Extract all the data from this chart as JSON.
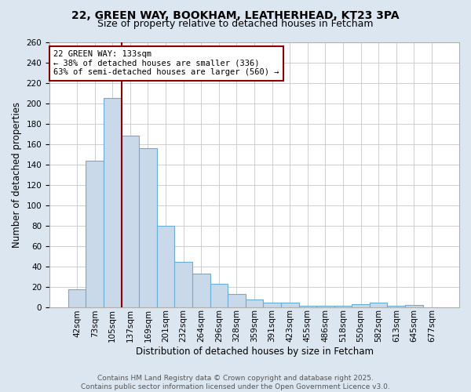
{
  "title_line1": "22, GREEN WAY, BOOKHAM, LEATHERHEAD, KT23 3PA",
  "title_line2": "Size of property relative to detached houses in Fetcham",
  "xlabel": "Distribution of detached houses by size in Fetcham",
  "ylabel": "Number of detached properties",
  "categories": [
    "42sqm",
    "73sqm",
    "105sqm",
    "137sqm",
    "169sqm",
    "201sqm",
    "232sqm",
    "264sqm",
    "296sqm",
    "328sqm",
    "359sqm",
    "391sqm",
    "423sqm",
    "455sqm",
    "486sqm",
    "518sqm",
    "550sqm",
    "582sqm",
    "613sqm",
    "645sqm",
    "677sqm"
  ],
  "values": [
    17,
    144,
    205,
    168,
    156,
    80,
    44,
    33,
    23,
    13,
    7,
    4,
    4,
    1,
    1,
    1,
    3,
    4,
    1,
    2,
    0
  ],
  "bar_color": "#c9d9ea",
  "bar_edge_color": "#6aaed6",
  "vline_color": "#8B0000",
  "vline_x_idx": 3,
  "annotation_text": "22 GREEN WAY: 133sqm\n← 38% of detached houses are smaller (336)\n63% of semi-detached houses are larger (560) →",
  "box_edge_color": "#8B0000",
  "ylim": [
    0,
    260
  ],
  "yticks": [
    0,
    20,
    40,
    60,
    80,
    100,
    120,
    140,
    160,
    180,
    200,
    220,
    240,
    260
  ],
  "footer_line1": "Contains HM Land Registry data © Crown copyright and database right 2025.",
  "footer_line2": "Contains public sector information licensed under the Open Government Licence v3.0.",
  "bg_color": "#dce6f0",
  "plot_bg_color": "#ffffff",
  "title_fontsize": 10,
  "subtitle_fontsize": 9,
  "xlabel_fontsize": 8.5,
  "ylabel_fontsize": 8.5,
  "tick_fontsize": 7.5,
  "annot_fontsize": 7.5,
  "footer_fontsize": 6.5
}
